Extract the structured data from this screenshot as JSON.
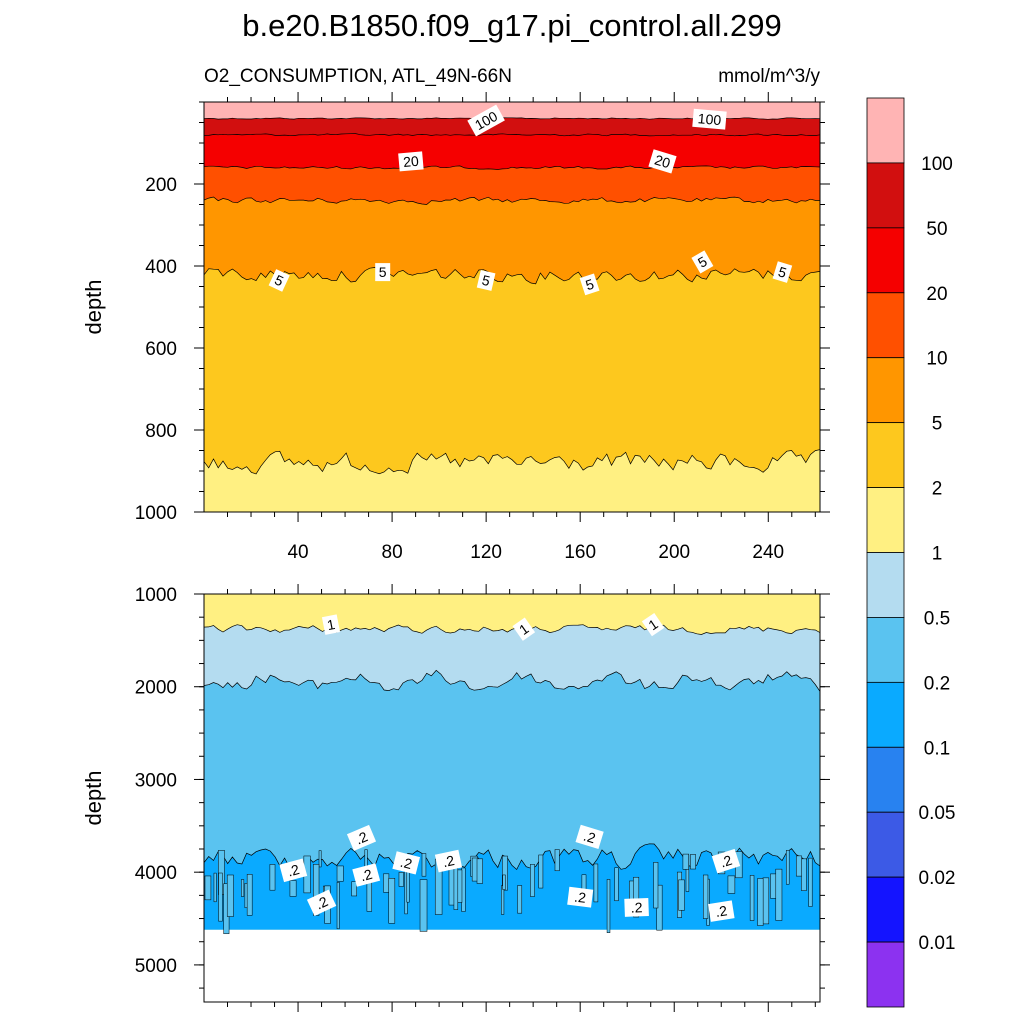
{
  "title": "b.e20.B1850.f09_g17.pi_control.all.299",
  "subtitle_left": "O2_CONSUMPTION, ATL_49N-66N",
  "subtitle_right": "mmol/m^3/y",
  "colorbar": {
    "levels": [
      "100",
      "50",
      "20",
      "10",
      "5",
      "2",
      "1",
      "0.5",
      "0.2",
      "0.1",
      "0.05",
      "0.02",
      "0.01"
    ],
    "colors": [
      "#ffb4b4",
      "#d20f0f",
      "#f50000",
      "#ff5000",
      "#ff9600",
      "#fdc81e",
      "#fff082",
      "#b4dcf0",
      "#5ac3f0",
      "#0aaaff",
      "#2882f0",
      "#3c5ae6",
      "#1414ff",
      "#8c32f0"
    ]
  },
  "chart_data": [
    {
      "type": "contour",
      "panel": "top",
      "ylabel": "depth",
      "xlabel": "",
      "xlim": [
        0,
        262
      ],
      "ylim": [
        1000,
        0
      ],
      "y_reversed": true,
      "xticks": [
        "40",
        "80",
        "120",
        "160",
        "200",
        "240"
      ],
      "yticks": [
        "200",
        "400",
        "600",
        "800",
        "1000"
      ],
      "contour_labels": [
        {
          "text": "100",
          "x": 120,
          "y": 45
        },
        {
          "text": "100",
          "x": 215,
          "y": 42
        },
        {
          "text": "20",
          "x": 88,
          "y": 145
        },
        {
          "text": "20",
          "x": 195,
          "y": 145
        },
        {
          "text": "5",
          "x": 32,
          "y": 435
        },
        {
          "text": "5",
          "x": 76,
          "y": 415
        },
        {
          "text": "5",
          "x": 120,
          "y": 435
        },
        {
          "text": "5",
          "x": 164,
          "y": 445
        },
        {
          "text": "5",
          "x": 212,
          "y": 390
        },
        {
          "text": "5",
          "x": 246,
          "y": 415
        }
      ],
      "boundaries": [
        {
          "between": "100 / 50",
          "depth": 40
        },
        {
          "between": "50 / 20",
          "depth": 80
        },
        {
          "between": "20 / 10",
          "depth": 160
        },
        {
          "between": "10 / 5",
          "depth": 240
        },
        {
          "between": "5 / 2",
          "depth": 420
        },
        {
          "between": "2 / 1",
          "depth": 880
        }
      ]
    },
    {
      "type": "contour",
      "panel": "bottom",
      "ylabel": "depth",
      "xlabel": "",
      "xlim": [
        0,
        262
      ],
      "ylim": [
        5400,
        1000
      ],
      "y_reversed": true,
      "xticks": [],
      "yticks": [
        "1000",
        "2000",
        "3000",
        "4000",
        "5000"
      ],
      "data_bottom_depth": 4620,
      "contour_labels": [
        {
          "text": "1",
          "x": 54,
          "y": 1330
        },
        {
          "text": "1",
          "x": 136,
          "y": 1380
        },
        {
          "text": "1",
          "x": 191,
          "y": 1330
        },
        {
          "text": ".2",
          "x": 67,
          "y": 3630
        },
        {
          "text": ".2",
          "x": 38,
          "y": 3980
        },
        {
          "text": ".2",
          "x": 69,
          "y": 4030
        },
        {
          "text": ".2",
          "x": 86,
          "y": 3900
        },
        {
          "text": ".2",
          "x": 104,
          "y": 3880
        },
        {
          "text": ".2",
          "x": 50,
          "y": 4330
        },
        {
          "text": ".2",
          "x": 164,
          "y": 3620
        },
        {
          "text": ".2",
          "x": 160,
          "y": 4270
        },
        {
          "text": ".2",
          "x": 184,
          "y": 4380
        },
        {
          "text": ".2",
          "x": 222,
          "y": 3880
        },
        {
          "text": ".2",
          "x": 220,
          "y": 4420
        }
      ],
      "boundaries": [
        {
          "between": "1 / 0.5",
          "depth": 1380
        },
        {
          "between": "0.5 / 0.2",
          "depth": 1950
        },
        {
          "between": "0.2 / 0.1",
          "depth": 3850
        }
      ]
    }
  ]
}
